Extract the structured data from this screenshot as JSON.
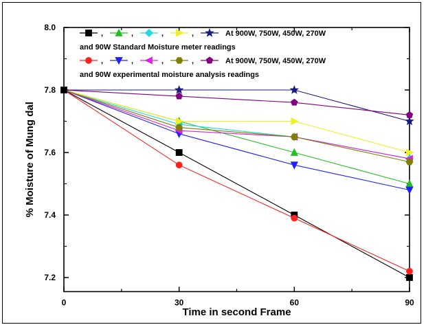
{
  "chart_data": {
    "type": "line",
    "xlabel": "Time in second Frame",
    "ylabel": "% Moisture of Mung dal",
    "xlim": [
      0,
      90
    ],
    "ylim": [
      7.2,
      8.0
    ],
    "x_ticks": [
      0,
      30,
      60,
      90
    ],
    "y_ticks": [
      7.2,
      7.4,
      7.6,
      7.8,
      8.0
    ],
    "x": [
      0,
      30,
      60,
      90
    ],
    "grid": false,
    "legend_position": "top-left inside",
    "legend_lines": [
      {
        "text": "At 900W, 750W, 450W, 270W",
        "markers": [
          "square",
          "triangle-up",
          "diamond",
          "triangle-right",
          "star"
        ]
      },
      {
        "text": "and 90W Standard Moisture meter readings"
      },
      {
        "text": "At 900W, 750W, 450W, 270W",
        "markers": [
          "circle",
          "triangle-down",
          "triangle-left",
          "hexagon",
          "pentagon"
        ]
      },
      {
        "text": "and 90W experimental moisture analysis readings"
      }
    ],
    "series": [
      {
        "values": [
          7.8,
          7.6,
          7.4,
          7.2
        ],
        "color": "#000000",
        "marker": "square"
      },
      {
        "values": [
          7.8,
          7.7,
          7.6,
          7.5
        ],
        "color": "#22c022",
        "marker": "triangle-up"
      },
      {
        "values": [
          7.8,
          7.69,
          7.65,
          7.58
        ],
        "color": "#20d8e0",
        "marker": "diamond"
      },
      {
        "values": [
          7.8,
          7.7,
          7.7,
          7.6
        ],
        "color": "#f0f020",
        "marker": "triangle-right"
      },
      {
        "values": [
          7.8,
          7.8,
          7.8,
          7.7
        ],
        "color": "#1a1a80",
        "marker": "star"
      },
      {
        "values": [
          7.8,
          7.56,
          7.39,
          7.22
        ],
        "color": "#ff2020",
        "marker": "circle"
      },
      {
        "values": [
          7.8,
          7.66,
          7.56,
          7.48
        ],
        "color": "#2020ff",
        "marker": "triangle-down"
      },
      {
        "values": [
          7.8,
          7.67,
          7.65,
          7.58
        ],
        "color": "#e020e0",
        "marker": "triangle-left"
      },
      {
        "values": [
          7.8,
          7.68,
          7.65,
          7.57
        ],
        "color": "#808000",
        "marker": "hexagon"
      },
      {
        "values": [
          7.8,
          7.78,
          7.76,
          7.72
        ],
        "color": "#800080",
        "marker": "pentagon"
      }
    ]
  }
}
